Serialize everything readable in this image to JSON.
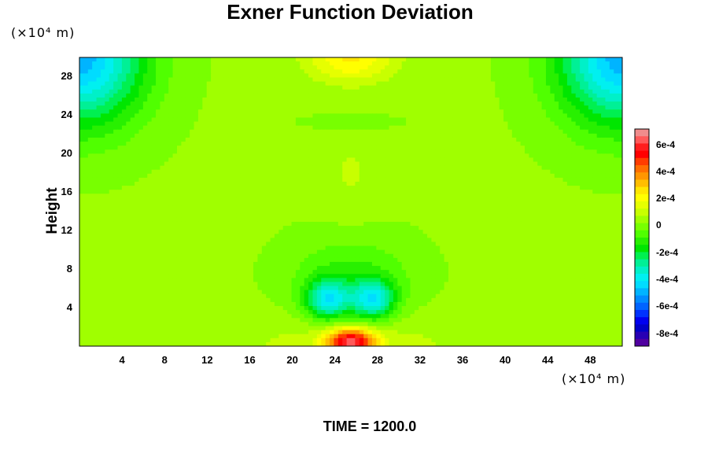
{
  "chart_data": {
    "type": "heatmap",
    "title": "Exner Function Deviation",
    "ylabel": "Height",
    "x_unit": "(×10⁴ m)",
    "y_unit": "(×10⁴ m)",
    "time_label": "TIME = 1200.0",
    "xlim": [
      0,
      51
    ],
    "ylim": [
      0,
      30
    ],
    "x_ticks": [
      "4",
      "8",
      "12",
      "16",
      "20",
      "24",
      "28",
      "32",
      "36",
      "40",
      "44",
      "48"
    ],
    "y_ticks": [
      "4",
      "8",
      "12",
      "16",
      "20",
      "24",
      "28"
    ],
    "colorbar": {
      "range": [
        -0.00089,
        0.00072
      ],
      "labels": [
        "6e-4",
        "4e-4",
        "2e-4",
        "0",
        "-2e-4",
        "-4e-4",
        "-6e-4",
        "-8e-4"
      ],
      "colors": [
        "#f08c8c",
        "#ff5a5a",
        "#ff1e1e",
        "#ff0000",
        "#ff3c00",
        "#ff6e00",
        "#ff9600",
        "#ffbe00",
        "#ffe600",
        "#ffff00",
        "#e6ff00",
        "#c8ff00",
        "#a0ff00",
        "#78ff00",
        "#50ff00",
        "#28f000",
        "#00e600",
        "#00f050",
        "#00f096",
        "#00f0c8",
        "#00f0f0",
        "#00dcff",
        "#00b4ff",
        "#008cff",
        "#0064ff",
        "#0032ff",
        "#0000f0",
        "#0000c8",
        "#2800b4",
        "#5000a0"
      ]
    },
    "field_features": [
      {
        "name": "surface maximum",
        "x": 25.5,
        "y": 0.5,
        "value": 0.00055
      },
      {
        "name": "low-level minimum left",
        "x": 23.3,
        "y": 4.8,
        "value": -0.00042
      },
      {
        "name": "low-level minimum right",
        "x": 27.6,
        "y": 4.8,
        "value": -0.00042
      },
      {
        "name": "upper maximum",
        "x": 25.5,
        "y": 30,
        "value": 0.00022
      },
      {
        "name": "upper-left corner minimum",
        "x": 0,
        "y": 30,
        "value": -0.00052
      },
      {
        "name": "upper-right corner minimum",
        "x": 51,
        "y": 30,
        "value": -0.00052
      }
    ]
  }
}
